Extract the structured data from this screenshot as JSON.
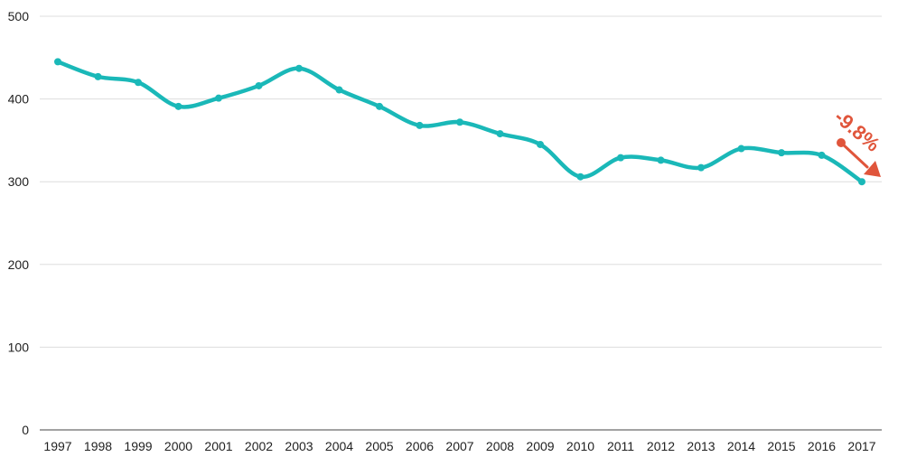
{
  "chart_data": {
    "type": "line",
    "title": "",
    "xlabel": "",
    "ylabel": "",
    "ylim": [
      0,
      500
    ],
    "yticks": [
      0,
      100,
      200,
      300,
      400,
      500
    ],
    "grid": true,
    "categories": [
      "1997",
      "1998",
      "1999",
      "2000",
      "2001",
      "2002",
      "2003",
      "2004",
      "2005",
      "2006",
      "2007",
      "2008",
      "2009",
      "2010",
      "2011",
      "2012",
      "2013",
      "2014",
      "2015",
      "2016",
      "2017"
    ],
    "series": [
      {
        "values": [
          445,
          427,
          420,
          391,
          401,
          416,
          437,
          411,
          391,
          368,
          372,
          358,
          345,
          306,
          329,
          326,
          317,
          340,
          335,
          332,
          300
        ]
      }
    ],
    "annotation": {
      "text": "-9.8%"
    },
    "colors": {
      "line": "#1ab8b8",
      "annotation": "#e0553b",
      "grid": "#dddddd",
      "axis": "#444444"
    }
  }
}
